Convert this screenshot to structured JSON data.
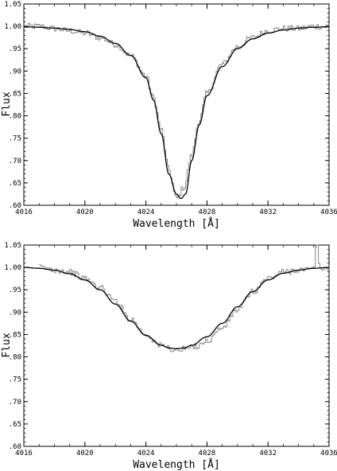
{
  "chart_data": [
    {
      "type": "line",
      "xlabel": "Wavelength [Å]",
      "ylabel": "Flux",
      "xlim": [
        4016,
        4036
      ],
      "ylim": [
        0.6,
        1.05
      ],
      "xticks": [
        "4016",
        "4020",
        "4024",
        "4028",
        "4032",
        "4036"
      ],
      "yticks": [
        ".60",
        ".65",
        ".70",
        ".75",
        ".80",
        ".85",
        ".90",
        ".95",
        "1.00",
        "1.05"
      ],
      "grid": false,
      "series": [
        {
          "style": "histogram-step",
          "color": "#888888",
          "x": [
            4016.0,
            4017.0,
            4018.0,
            4019.0,
            4020.0,
            4021.0,
            4022.0,
            4023.0,
            4024.0,
            4024.5,
            4025.0,
            4025.5,
            4026.0,
            4026.5,
            4027.0,
            4027.5,
            4028.0,
            4029.0,
            4030.0,
            4031.0,
            4032.0,
            4033.0,
            4034.0,
            4035.0,
            4036.0
          ],
          "y": [
            1.0,
            1.0,
            0.995,
            0.99,
            0.985,
            0.975,
            0.96,
            0.935,
            0.89,
            0.84,
            0.77,
            0.68,
            0.615,
            0.64,
            0.71,
            0.79,
            0.85,
            0.915,
            0.955,
            0.975,
            0.99,
            0.995,
            0.995,
            1.0,
            1.0
          ]
        },
        {
          "style": "smooth-model",
          "color": "#000000",
          "x": [
            4016.0,
            4017.0,
            4018.0,
            4019.0,
            4020.0,
            4021.0,
            4022.0,
            4023.0,
            4024.0,
            4024.5,
            4025.0,
            4025.5,
            4026.0,
            4026.3,
            4026.6,
            4027.0,
            4027.5,
            4028.0,
            4029.0,
            4030.0,
            4031.0,
            4032.0,
            4033.0,
            4034.0,
            4035.0,
            4036.0
          ],
          "y": [
            0.999,
            0.998,
            0.996,
            0.993,
            0.988,
            0.978,
            0.962,
            0.935,
            0.885,
            0.835,
            0.76,
            0.67,
            0.625,
            0.615,
            0.625,
            0.7,
            0.78,
            0.845,
            0.91,
            0.95,
            0.972,
            0.985,
            0.992,
            0.996,
            0.998,
            0.999
          ]
        }
      ]
    },
    {
      "type": "line",
      "xlabel": "Wavelength [Å]",
      "ylabel": "Flux",
      "xlim": [
        4016,
        4036
      ],
      "ylim": [
        0.6,
        1.05
      ],
      "xticks": [
        "4016",
        "4020",
        "4024",
        "4028",
        "4032",
        "4036"
      ],
      "yticks": [
        ".60",
        ".65",
        ".70",
        ".75",
        ".80",
        ".85",
        ".90",
        ".95",
        "1.00",
        "1.05"
      ],
      "grid": false,
      "series": [
        {
          "style": "histogram-step",
          "color": "#888888",
          "x": [
            4017.0,
            4018.0,
            4019.0,
            4020.0,
            4021.0,
            4022.0,
            4023.0,
            4024.0,
            4025.0,
            4026.0,
            4027.0,
            4028.0,
            4029.0,
            4030.0,
            4031.0,
            4032.0,
            4033.0,
            4034.0,
            4035.0,
            4035.2,
            4035.4,
            4036.0
          ],
          "y": [
            1.0,
            0.995,
            0.99,
            0.975,
            0.955,
            0.925,
            0.885,
            0.85,
            0.825,
            0.815,
            0.82,
            0.835,
            0.865,
            0.905,
            0.945,
            0.975,
            0.99,
            0.995,
            0.995,
            1.05,
            0.995,
            1.0
          ]
        },
        {
          "style": "smooth-model",
          "color": "#000000",
          "x": [
            4016.0,
            4017.0,
            4018.0,
            4019.0,
            4020.0,
            4021.0,
            4022.0,
            4023.0,
            4024.0,
            4025.0,
            4025.5,
            4026.0,
            4026.5,
            4027.0,
            4028.0,
            4029.0,
            4030.0,
            4031.0,
            4032.0,
            4033.0,
            4034.0,
            4035.0,
            4036.0
          ],
          "y": [
            1.0,
            0.998,
            0.994,
            0.986,
            0.972,
            0.95,
            0.918,
            0.88,
            0.848,
            0.826,
            0.82,
            0.818,
            0.82,
            0.826,
            0.845,
            0.875,
            0.912,
            0.946,
            0.972,
            0.987,
            0.994,
            0.998,
            1.0
          ]
        }
      ]
    }
  ]
}
